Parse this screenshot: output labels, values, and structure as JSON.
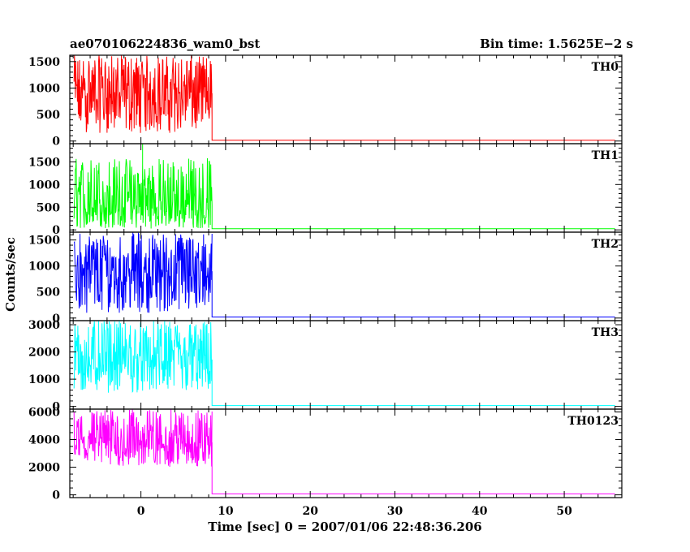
{
  "header": {
    "object_name": "ae070106224836_wam0_bst",
    "bin_time": "Bin time: 1.5625E−2 s"
  },
  "axes": {
    "ylabel": "Counts/sec",
    "xlabel": "Time [sec] 0 = 2007/01/06 22:48:36.206",
    "x_range": [
      -8.4,
      56.8
    ],
    "x_ticks": [
      0,
      10,
      20,
      30,
      40,
      50
    ],
    "x_minor_step": 2
  },
  "chart_data": {
    "type": "line",
    "burst_end_time": 8.4,
    "series": [
      {
        "name": "TH0",
        "color": "#ff0000",
        "ylim": [
          -50,
          1620
        ],
        "ticks": [
          0,
          500,
          1000,
          1500
        ],
        "minor_step": 100,
        "burst_min": 150,
        "burst_max": 1620,
        "burst_mean": 900,
        "background": 15,
        "spike": null
      },
      {
        "name": "TH1",
        "color": "#00ff00",
        "ylim": [
          -50,
          1900
        ],
        "ticks": [
          0,
          500,
          1000,
          1500
        ],
        "minor_step": 100,
        "burst_min": 30,
        "burst_max": 1600,
        "burst_mean": 550,
        "background": 25,
        "spike": {
          "time": 0.2,
          "value": 1900
        }
      },
      {
        "name": "TH2",
        "color": "#0000ff",
        "ylim": [
          -50,
          1650
        ],
        "ticks": [
          0,
          500,
          1000,
          1500
        ],
        "minor_step": 100,
        "burst_min": 100,
        "burst_max": 1650,
        "burst_mean": 900,
        "background": 20,
        "spike": null
      },
      {
        "name": "TH3",
        "color": "#00ffff",
        "ylim": [
          -100,
          3150
        ],
        "ticks": [
          0,
          1000,
          2000,
          3000
        ],
        "minor_step": 200,
        "burst_min": 500,
        "burst_max": 3150,
        "burst_mean": 1700,
        "background": 30,
        "spike": null
      },
      {
        "name": "TH0123",
        "color": "#ff00ff",
        "ylim": [
          -200,
          6200
        ],
        "ticks": [
          0,
          2000,
          4000,
          6000
        ],
        "minor_step": 500,
        "burst_min": 2000,
        "burst_max": 6200,
        "burst_mean": 3800,
        "background": 70,
        "spike": null
      }
    ]
  }
}
